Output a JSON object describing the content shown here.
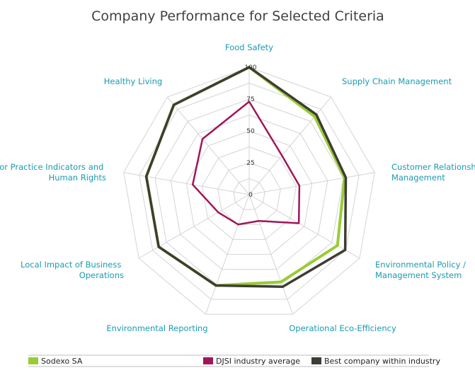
{
  "chart_data": {
    "type": "radar",
    "title": "Company Performance for Selected Criteria",
    "axes": [
      "Food Safety",
      "Supply Chain Management",
      "Customer Relationship Management",
      "Environmental Policy / Management System",
      "Operational Eco-Efficiency",
      "Environmental Reporting",
      "Local Impact of Business Operations",
      "Labor Practice Indicators and Human Rights",
      "Healthy Living"
    ],
    "ticks": [
      "0",
      "25",
      "50",
      "75",
      "100"
    ],
    "range": [
      0,
      100
    ],
    "grid": true,
    "legend_position": "bottom",
    "series": [
      {
        "name": "Sodexo SA",
        "color": "#99cc33",
        "values": [
          100,
          80,
          76,
          80,
          73,
          76,
          82,
          82,
          92
        ]
      },
      {
        "name": "DJSI industry average",
        "color": "#a0165a",
        "values": [
          73,
          40,
          40,
          45,
          22,
          25,
          28,
          45,
          57
        ]
      },
      {
        "name": "Best company within industry",
        "color": "#3d3d35",
        "values": [
          100,
          82,
          77,
          87,
          77,
          76,
          82,
          82,
          92
        ]
      }
    ]
  }
}
